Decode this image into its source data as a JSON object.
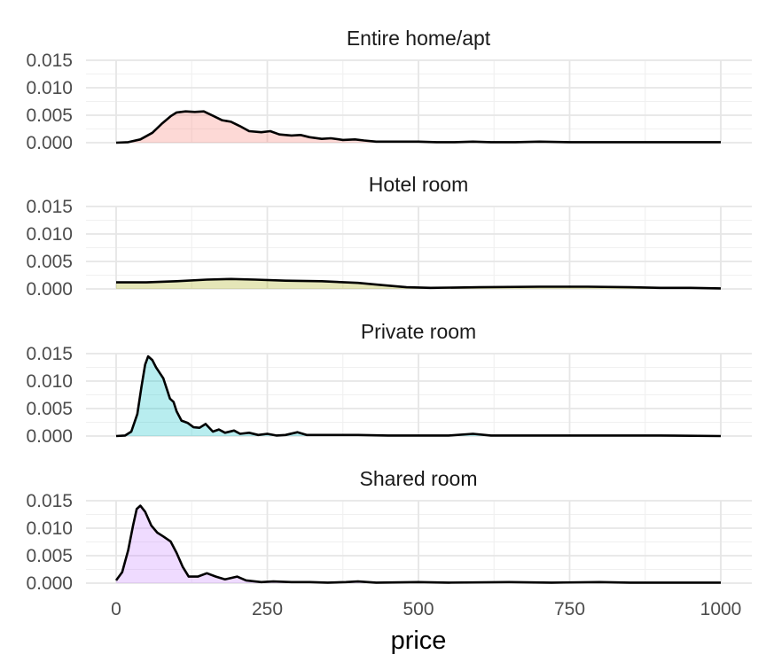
{
  "chart_data": {
    "type": "area",
    "subtype": "faceted-density",
    "xlabel": "price",
    "ylabel": "",
    "xlim": [
      0,
      1000
    ],
    "ylim": [
      0,
      0.015
    ],
    "x_ticks": [
      "0",
      "250",
      "500",
      "750",
      "1000"
    ],
    "y_ticks": [
      "0.000",
      "0.005",
      "0.010",
      "0.015"
    ],
    "grid": true,
    "panels": [
      {
        "title": "Entire home/apt",
        "fill": "#f8766d",
        "points": [
          [
            0,
            0
          ],
          [
            20,
            0.0001
          ],
          [
            40,
            0.0006
          ],
          [
            60,
            0.0018
          ],
          [
            75,
            0.0034
          ],
          [
            90,
            0.0048
          ],
          [
            100,
            0.0055
          ],
          [
            115,
            0.0057
          ],
          [
            130,
            0.0056
          ],
          [
            145,
            0.0057
          ],
          [
            160,
            0.0049
          ],
          [
            175,
            0.0041
          ],
          [
            190,
            0.0038
          ],
          [
            205,
            0.003
          ],
          [
            220,
            0.0021
          ],
          [
            240,
            0.0019
          ],
          [
            255,
            0.0021
          ],
          [
            270,
            0.0015
          ],
          [
            290,
            0.0013
          ],
          [
            305,
            0.0014
          ],
          [
            320,
            0.001
          ],
          [
            340,
            0.0007
          ],
          [
            355,
            0.0008
          ],
          [
            375,
            0.0005
          ],
          [
            395,
            0.0006
          ],
          [
            410,
            0.0004
          ],
          [
            430,
            0.0002
          ],
          [
            470,
            0.0002
          ],
          [
            500,
            0.0002
          ],
          [
            530,
            0.0001
          ],
          [
            560,
            0.0001
          ],
          [
            590,
            0.0002
          ],
          [
            620,
            0.0001
          ],
          [
            660,
            0.0001
          ],
          [
            700,
            0.0002
          ],
          [
            750,
            0.0001
          ],
          [
            800,
            0.0001
          ],
          [
            850,
            0.0001
          ],
          [
            900,
            0.0001
          ],
          [
            950,
            0.0001
          ],
          [
            1000,
            0.0001
          ]
        ]
      },
      {
        "title": "Hotel room",
        "fill": "#a3a500",
        "points": [
          [
            0,
            0.0012
          ],
          [
            50,
            0.0012
          ],
          [
            100,
            0.0014
          ],
          [
            150,
            0.0017
          ],
          [
            190,
            0.0018
          ],
          [
            230,
            0.0017
          ],
          [
            280,
            0.0015
          ],
          [
            340,
            0.0014
          ],
          [
            400,
            0.0011
          ],
          [
            440,
            0.0007
          ],
          [
            480,
            0.0003
          ],
          [
            520,
            0.0002
          ],
          [
            600,
            0.0003
          ],
          [
            700,
            0.0004
          ],
          [
            780,
            0.0004
          ],
          [
            850,
            0.0003
          ],
          [
            900,
            0.0002
          ],
          [
            950,
            0.0002
          ],
          [
            1000,
            0.0001
          ]
        ]
      },
      {
        "title": "Private room",
        "fill": "#00bfc4",
        "points": [
          [
            0,
            0
          ],
          [
            15,
            0.0001
          ],
          [
            25,
            0.0008
          ],
          [
            35,
            0.004
          ],
          [
            42,
            0.009
          ],
          [
            48,
            0.013
          ],
          [
            53,
            0.0145
          ],
          [
            60,
            0.0138
          ],
          [
            66,
            0.0125
          ],
          [
            72,
            0.0115
          ],
          [
            78,
            0.0105
          ],
          [
            84,
            0.0085
          ],
          [
            89,
            0.0068
          ],
          [
            95,
            0.0062
          ],
          [
            100,
            0.0045
          ],
          [
            108,
            0.0028
          ],
          [
            118,
            0.0024
          ],
          [
            128,
            0.0016
          ],
          [
            138,
            0.0015
          ],
          [
            148,
            0.0022
          ],
          [
            160,
            0.0008
          ],
          [
            170,
            0.0012
          ],
          [
            180,
            0.0006
          ],
          [
            195,
            0.001
          ],
          [
            205,
            0.0004
          ],
          [
            220,
            0.0006
          ],
          [
            235,
            0.0002
          ],
          [
            250,
            0.0004
          ],
          [
            265,
            0.0001
          ],
          [
            280,
            0.0002
          ],
          [
            300,
            0.0007
          ],
          [
            315,
            0.0002
          ],
          [
            350,
            0.0002
          ],
          [
            400,
            0.0002
          ],
          [
            450,
            0.0001
          ],
          [
            500,
            0.0001
          ],
          [
            550,
            0.0001
          ],
          [
            590,
            0.0004
          ],
          [
            620,
            0.0001
          ],
          [
            700,
            0.0001
          ],
          [
            800,
            0.0001
          ],
          [
            900,
            0.0001
          ],
          [
            1000,
            0
          ]
        ]
      },
      {
        "title": "Shared room",
        "fill": "#c77cff",
        "points": [
          [
            0,
            0.0005
          ],
          [
            10,
            0.002
          ],
          [
            20,
            0.006
          ],
          [
            28,
            0.0105
          ],
          [
            34,
            0.0135
          ],
          [
            40,
            0.0141
          ],
          [
            48,
            0.013
          ],
          [
            58,
            0.0105
          ],
          [
            68,
            0.0092
          ],
          [
            78,
            0.0085
          ],
          [
            90,
            0.0076
          ],
          [
            100,
            0.0055
          ],
          [
            110,
            0.003
          ],
          [
            120,
            0.0012
          ],
          [
            135,
            0.0012
          ],
          [
            150,
            0.0018
          ],
          [
            165,
            0.0012
          ],
          [
            180,
            0.0007
          ],
          [
            200,
            0.0012
          ],
          [
            215,
            0.0005
          ],
          [
            240,
            0.0002
          ],
          [
            260,
            0.0003
          ],
          [
            290,
            0.0002
          ],
          [
            320,
            0.0002
          ],
          [
            350,
            0.0001
          ],
          [
            380,
            0.0002
          ],
          [
            400,
            0.0003
          ],
          [
            430,
            0.0001
          ],
          [
            500,
            0.0002
          ],
          [
            550,
            0.0001
          ],
          [
            650,
            0.0002
          ],
          [
            720,
            0.0001
          ],
          [
            800,
            0.0002
          ],
          [
            850,
            0.0001
          ],
          [
            900,
            0.0001
          ],
          [
            1000,
            0.0001
          ]
        ]
      }
    ]
  }
}
